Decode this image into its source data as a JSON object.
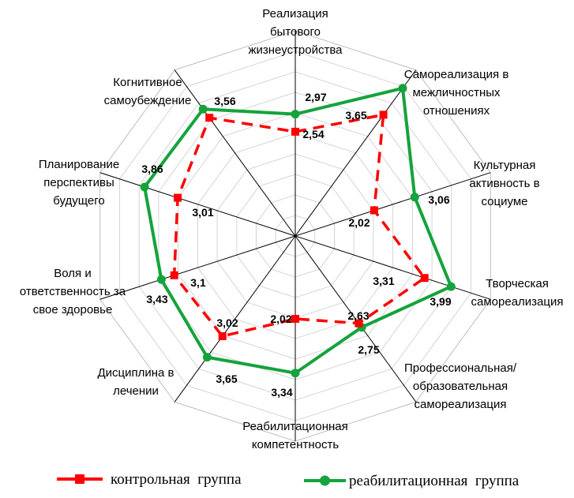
{
  "chart_data": {
    "type": "radar",
    "axes": [
      [
        "Реализация",
        "бытового",
        "жизнеустройства"
      ],
      [
        "Самореализация в",
        "межличностных",
        "отношениях"
      ],
      [
        "Культурная",
        "активность в",
        "социуме"
      ],
      [
        "Творческая",
        "самореализация"
      ],
      [
        "Профессиональная/",
        "образовательная",
        "самореализация"
      ],
      [
        "Реабилитационная",
        "компетентность"
      ],
      [
        "Дисциплина в",
        "лечении"
      ],
      [
        "Воля и",
        "ответственность за",
        "свое здоровье"
      ],
      [
        "Планирование",
        "перспективы",
        "будущего"
      ],
      [
        "Когнитивное",
        "самоубеждение"
      ]
    ],
    "series": [
      {
        "name": "контрольная  группа",
        "color": "#ff0000",
        "marker": "square",
        "line": "dashed",
        "values": [
          2.54,
          3.65,
          2.02,
          3.31,
          2.63,
          2.02,
          3.02,
          3.1,
          3.01,
          3.56
        ],
        "labels": [
          "2,54",
          "3,65",
          "2,02",
          "3,31",
          "2,63",
          "2,02",
          "3,02",
          "3,1",
          "3,01",
          "3,56"
        ]
      },
      {
        "name": "реабилитационная  группа",
        "color": "#14a33c",
        "marker": "circle",
        "line": "solid",
        "values": [
          2.97,
          4.45,
          3.06,
          3.99,
          2.75,
          3.34,
          3.65,
          3.43,
          3.86,
          3.82
        ],
        "labels": [
          "2,97",
          "",
          "3,06",
          "3,99",
          "2,75",
          "3,34",
          "3,65",
          "3,43",
          "3,86",
          ""
        ]
      }
    ],
    "rmax": 5,
    "grid_levels": 10,
    "legend_position": "bottom"
  }
}
